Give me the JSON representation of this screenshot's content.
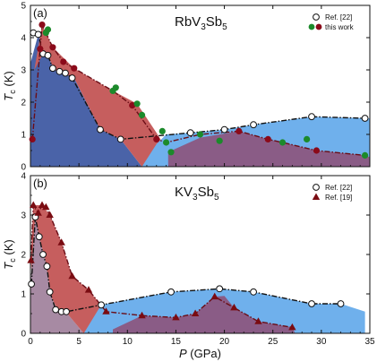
{
  "chart_data": [
    {
      "panel": "(a)",
      "type": "scatter",
      "title": "RbV3Sb5",
      "title_parts": {
        "a": "RbV",
        "s1": "3",
        "b": "Sb",
        "s2": "5"
      },
      "ylabel": "T_c (K)",
      "ylabel_parts": {
        "main": "T",
        "sub": "c",
        "unit": " (K)"
      },
      "xlim": [
        0,
        35
      ],
      "ylim": [
        0,
        5
      ],
      "yticks": [
        "0",
        "1",
        "2",
        "3",
        "4",
        "5"
      ],
      "legend": {
        "position": "top-right",
        "entries": [
          "Ref. [22]",
          "this work"
        ]
      },
      "series": [
        {
          "name": "Ref. [22]",
          "marker": "open-circle",
          "points": [
            [
              0.3,
              4.15
            ],
            [
              0.8,
              4.1
            ],
            [
              1.3,
              3.5
            ],
            [
              1.8,
              3.45
            ],
            [
              2.3,
              3.05
            ],
            [
              3,
              2.95
            ],
            [
              3.6,
              2.9
            ],
            [
              4.3,
              2.75
            ],
            [
              7.2,
              1.15
            ],
            [
              9.3,
              0.85
            ],
            [
              16.5,
              1.05
            ],
            [
              20,
              1.15
            ],
            [
              23,
              1.3
            ],
            [
              29,
              1.55
            ],
            [
              34.5,
              1.5
            ]
          ]
        },
        {
          "name": "this work",
          "marker": "filled-circle",
          "points": [
            [
              0.2,
              0.85
            ],
            [
              1,
              3.65
            ],
            [
              1.2,
              4.4
            ],
            [
              1.6,
              4.15
            ],
            [
              2.3,
              3.7
            ],
            [
              3.4,
              3.25
            ],
            [
              4.5,
              3.05
            ],
            [
              8.5,
              2.35
            ],
            [
              10.5,
              1.9
            ],
            [
              13,
              0.85
            ],
            [
              14,
              0.75
            ],
            [
              17.5,
              1.0
            ],
            [
              21.5,
              1.1
            ],
            [
              24.5,
              0.85
            ],
            [
              26,
              0.75
            ],
            [
              29.5,
              0.5
            ],
            [
              34.5,
              0.35
            ]
          ],
          "colors": [
            "#8b0a1a",
            "#8b0a1a",
            "#8b0a1a",
            "#1c8a2b",
            "#8b0a1a",
            "#8b0a1a",
            "#8b0a1a",
            "#1c8a2b",
            "#8b0a1a",
            "#8b0a1a",
            "#1c8a2b",
            "#1c8a2b",
            "#8b0a1a",
            "#8b0a1a",
            "#1c8a2b",
            "#8b0a1a",
            "#1c8a2b"
          ]
        }
      ],
      "extra_points": [
        [
          1.8,
          4.25,
          "#1c8a2b"
        ],
        [
          8.8,
          2.45,
          "#1c8a2b"
        ],
        [
          11,
          1.95,
          "#1c8a2b"
        ],
        [
          11.5,
          1.6,
          "#1c8a2b"
        ],
        [
          13.6,
          1.1,
          "#1c8a2b"
        ],
        [
          14.5,
          0.45,
          "#1c8a2b"
        ],
        [
          19.5,
          0.8,
          "#1c8a2b"
        ],
        [
          28.5,
          0.85,
          "#1c8a2b"
        ]
      ],
      "regions": [
        {
          "fill": "#4a63a8",
          "boundary": [
            [
              0,
              0
            ],
            [
              0,
              3.2
            ],
            [
              0.8,
              4.1
            ],
            [
              1.5,
              3.6
            ],
            [
              2.5,
              3.0
            ],
            [
              4.5,
              2.75
            ],
            [
              7.2,
              1.15
            ],
            [
              9.3,
              0.85
            ],
            [
              11.5,
              0
            ]
          ]
        },
        {
          "fill": "#c65e5e",
          "boundary": [
            [
              0.4,
              3.0
            ],
            [
              1.2,
              4.4
            ],
            [
              2.3,
              3.7
            ],
            [
              4.5,
              3.05
            ],
            [
              8.5,
              2.35
            ],
            [
              11,
              1.95
            ],
            [
              13,
              1.05
            ],
            [
              14.2,
              0.45
            ],
            [
              14.2,
              0
            ],
            [
              11.5,
              0
            ],
            [
              9.3,
              0.85
            ],
            [
              7.2,
              1.15
            ],
            [
              4.5,
              2.75
            ],
            [
              2.5,
              3.0
            ],
            [
              1.5,
              3.6
            ]
          ]
        },
        {
          "fill": "#6fb0ec",
          "boundary": [
            [
              11.5,
              0
            ],
            [
              13,
              0.7
            ],
            [
              14,
              1.0
            ],
            [
              16.5,
              1.05
            ],
            [
              20,
              1.15
            ],
            [
              23,
              1.3
            ],
            [
              29,
              1.55
            ],
            [
              35,
              1.5
            ],
            [
              35,
              0
            ]
          ]
        },
        {
          "fill": "#8a5c86",
          "boundary": [
            [
              14.2,
              0
            ],
            [
              14.2,
              0.45
            ],
            [
              17.5,
              0.9
            ],
            [
              21.5,
              1.1
            ],
            [
              24.5,
              0.85
            ],
            [
              26,
              0.75
            ],
            [
              29.5,
              0.5
            ],
            [
              34.5,
              0.35
            ],
            [
              35,
              0.3
            ],
            [
              35,
              0
            ]
          ]
        }
      ]
    },
    {
      "panel": "(b)",
      "type": "scatter",
      "title": "KV3Sb5",
      "title_parts": {
        "a": "KV",
        "s1": "3",
        "b": "Sb",
        "s2": "5"
      },
      "ylabel": "T_c (K)",
      "ylabel_parts": {
        "main": "T",
        "sub": "c",
        "unit": " (K)"
      },
      "xlabel": "P (GPa)",
      "xlabel_parts": {
        "main": "P",
        "unit": " (GPa)"
      },
      "xlim": [
        0,
        35
      ],
      "ylim": [
        0,
        4
      ],
      "xticks": [
        "0",
        "5",
        "10",
        "15",
        "20",
        "25",
        "30",
        "35"
      ],
      "yticks": [
        "0",
        "1",
        "2",
        "3",
        "4"
      ],
      "legend": {
        "position": "top-right",
        "entries": [
          "Ref. [22]",
          "Ref. [19]"
        ]
      },
      "series": [
        {
          "name": "Ref. [22]",
          "marker": "open-circle",
          "points": [
            [
              0.1,
              1.25
            ],
            [
              0.5,
              2.95
            ],
            [
              0.9,
              2.45
            ],
            [
              1.3,
              2.0
            ],
            [
              1.7,
              1.7
            ],
            [
              2,
              1.05
            ],
            [
              2.6,
              0.6
            ],
            [
              3.2,
              0.55
            ],
            [
              3.7,
              0.55
            ],
            [
              7.3,
              0.72
            ],
            [
              14.5,
              1.05
            ],
            [
              19.5,
              1.13
            ],
            [
              23,
              1.05
            ],
            [
              29,
              0.75
            ],
            [
              32,
              0.75
            ]
          ]
        },
        {
          "name": "Ref. [19]",
          "marker": "filled-triangle",
          "points": [
            [
              0.05,
              1.85
            ],
            [
              0.3,
              3.25
            ],
            [
              0.8,
              3.05
            ],
            [
              1.2,
              3.25
            ],
            [
              1.6,
              3.2
            ],
            [
              2,
              3.0
            ],
            [
              3.2,
              2.3
            ],
            [
              4.3,
              1.45
            ],
            [
              6,
              1.1
            ],
            [
              7.8,
              0.55
            ],
            [
              11.5,
              0.45
            ],
            [
              15,
              0.4
            ],
            [
              17,
              0.5
            ],
            [
              19,
              0.93
            ],
            [
              21,
              0.65
            ],
            [
              23.5,
              0.3
            ],
            [
              27,
              0.15
            ]
          ]
        }
      ],
      "regions": [
        {
          "fill": "#a78aa3",
          "boundary": [
            [
              0,
              0
            ],
            [
              0,
              1.25
            ],
            [
              0.5,
              2.95
            ],
            [
              0.9,
              2.45
            ],
            [
              1.5,
              1.9
            ],
            [
              2.2,
              0.9
            ],
            [
              2.8,
              0.6
            ],
            [
              3.8,
              0.5
            ],
            [
              5.5,
              0
            ]
          ]
        },
        {
          "fill": "#c65e5e",
          "boundary": [
            [
              0.05,
              1.85
            ],
            [
              0.3,
              3.25
            ],
            [
              1.2,
              3.25
            ],
            [
              2,
              3.0
            ],
            [
              3.2,
              2.3
            ],
            [
              4.3,
              1.45
            ],
            [
              6,
              1.1
            ],
            [
              7.8,
              0.55
            ],
            [
              8.5,
              0.4
            ],
            [
              7.2,
              0.6
            ],
            [
              6,
              0.15
            ],
            [
              5.5,
              0
            ],
            [
              3.8,
              0.5
            ],
            [
              2.8,
              0.6
            ],
            [
              2.2,
              0.9
            ],
            [
              1.5,
              1.9
            ],
            [
              0.9,
              2.45
            ],
            [
              0.5,
              2.95
            ],
            [
              0.1,
              1.6
            ]
          ]
        },
        {
          "fill": "#6fb0ec",
          "boundary": [
            [
              5.5,
              0
            ],
            [
              7.3,
              0.72
            ],
            [
              10,
              0.85
            ],
            [
              14.5,
              1.05
            ],
            [
              19.5,
              1.13
            ],
            [
              23,
              1.05
            ],
            [
              29,
              0.75
            ],
            [
              32,
              0.75
            ],
            [
              34.5,
              0.55
            ],
            [
              34.5,
              0
            ]
          ]
        },
        {
          "fill": "#8a5c86",
          "boundary": [
            [
              8.5,
              0.1
            ],
            [
              11.5,
              0.45
            ],
            [
              15,
              0.4
            ],
            [
              17,
              0.5
            ],
            [
              19,
              0.93
            ],
            [
              20,
              0.95
            ],
            [
              21,
              0.65
            ],
            [
              23.5,
              0.3
            ],
            [
              27,
              0.15
            ],
            [
              27.3,
              0
            ],
            [
              8.5,
              0
            ]
          ]
        }
      ]
    }
  ]
}
